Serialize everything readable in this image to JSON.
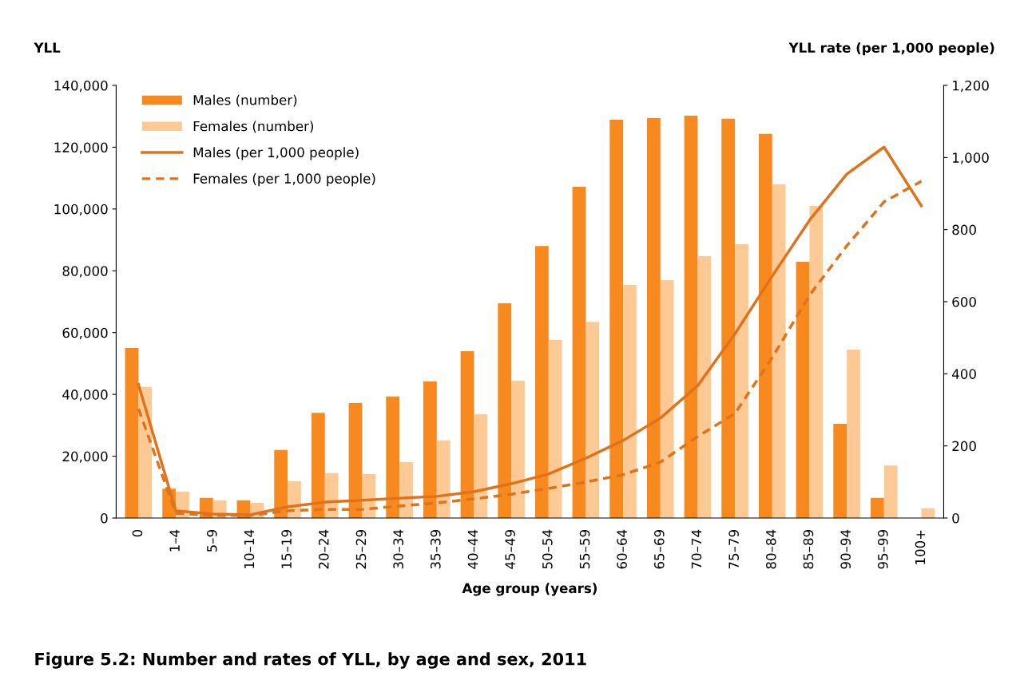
{
  "chart_data": {
    "type": "bar",
    "xlabel": "Age group (years)",
    "ylabel": "YLL",
    "y2label": "YLL rate (per 1,000 people)",
    "categories": [
      "0",
      "1–4",
      "5–9",
      "10–14",
      "15–19",
      "20–24",
      "25–29",
      "30–34",
      "35–39",
      "40–44",
      "45–49",
      "50–54",
      "55–59",
      "60–64",
      "65–69",
      "70–74",
      "75–79",
      "80–84",
      "85–89",
      "90–94",
      "95–99",
      "100+"
    ],
    "series": [
      {
        "name": "Males (number)",
        "color": "#f7891e",
        "values": [
          55000,
          9500,
          6500,
          5700,
          22000,
          34000,
          37200,
          39300,
          44200,
          54000,
          69500,
          88000,
          107200,
          128900,
          129400,
          130200,
          129200,
          124300,
          82900,
          30500,
          6500,
          0
        ]
      },
      {
        "name": "Females (number)",
        "color": "#fdc995",
        "values": [
          42400,
          8500,
          5700,
          4900,
          11900,
          14500,
          14200,
          18100,
          25100,
          33600,
          44400,
          57600,
          63500,
          75400,
          77000,
          84700,
          88600,
          108000,
          101000,
          54500,
          17000,
          3100
        ]
      },
      {
        "name": "Males (per 1,000 people)",
        "type": "line",
        "axis": "y2",
        "line_style": "solid",
        "color": "#e0731a",
        "values": [
          370,
          20,
          11,
          9,
          31,
          44,
          49,
          55,
          60,
          73,
          95,
          122,
          166,
          215,
          277,
          367,
          511,
          671,
          826,
          954,
          1029,
          866
        ]
      },
      {
        "name": "Females (per 1,000 people)",
        "type": "line",
        "axis": "y2",
        "line_style": "dashed",
        "color": "#e0731a",
        "values": [
          303,
          13,
          7,
          7,
          20,
          24,
          24,
          33,
          42,
          53,
          66,
          82,
          100,
          120,
          155,
          226,
          290,
          445,
          618,
          755,
          877,
          934
        ]
      }
    ],
    "ylim": [
      0,
      140000
    ],
    "yticks": [
      {
        "value": 0,
        "label": "0"
      },
      {
        "value": 20000,
        "label": "20,000"
      },
      {
        "value": 40000,
        "label": "40,000"
      },
      {
        "value": 60000,
        "label": "60,000"
      },
      {
        "value": 80000,
        "label": "80,000"
      },
      {
        "value": 100000,
        "label": "100,000"
      },
      {
        "value": 120000,
        "label": "120,000"
      },
      {
        "value": 140000,
        "label": "140,000"
      }
    ],
    "y2lim": [
      0,
      1200
    ],
    "y2ticks": [
      0,
      200,
      400,
      600,
      800,
      {
        "value": 1000,
        "label": "1,000"
      },
      {
        "value": 1200,
        "label": "1,200"
      }
    ],
    "grid": false,
    "legend": "top left",
    "annotations": [
      "Figure 5.2: Number and rates of YLL, by age and sex, 2011"
    ]
  }
}
